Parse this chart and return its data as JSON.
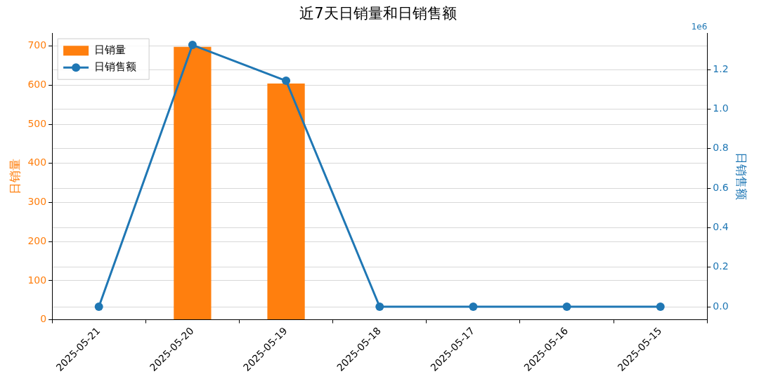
{
  "chart_data": {
    "type": "bar",
    "title": "近7天日销量和日销售额",
    "categories": [
      "2025-05-21",
      "2025-05-20",
      "2025-05-19",
      "2025-05-18",
      "2025-05-17",
      "2025-05-16",
      "2025-05-15"
    ],
    "series": [
      {
        "name": "日销量",
        "color": "#ff7f0e",
        "values": [
          0,
          698,
          604,
          0,
          0,
          0,
          0
        ]
      },
      {
        "name": "日销售额",
        "type": "line",
        "axis": "y2",
        "color": "#1f77b4",
        "values": [
          0,
          1.325,
          1.144,
          0,
          0,
          0,
          0
        ]
      }
    ],
    "ylabel": "日销量",
    "y2label": "日销售额",
    "ylim": [
      0,
      733
    ],
    "yticks": [
      0,
      100,
      200,
      300,
      400,
      500,
      600,
      700
    ],
    "y2lim": [
      -0.066,
      1.385
    ],
    "y2ticks": [
      {
        "value": 0,
        "label": "0.0"
      },
      0.2,
      0.4,
      0.6,
      0.8,
      {
        "value": 1,
        "label": "1.0"
      },
      1.2
    ],
    "annotations": [
      "1e6"
    ],
    "grid": "y",
    "legend": "top left",
    "marker": "circle",
    "line_style": "solid"
  }
}
